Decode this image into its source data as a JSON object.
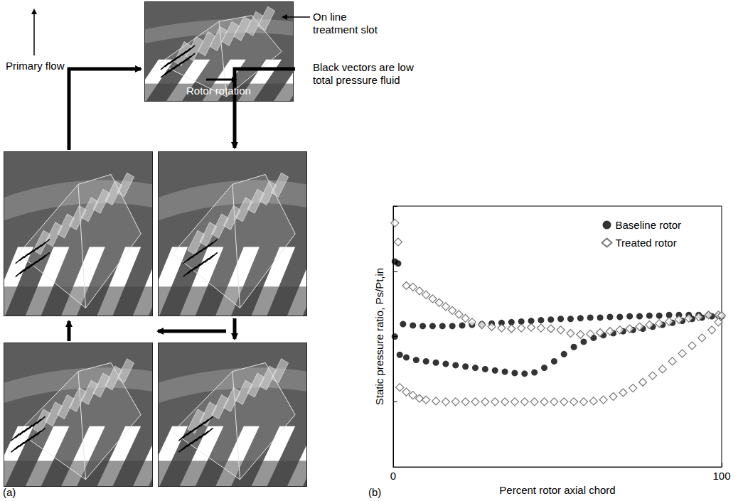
{
  "diagram": {
    "label": "(a)",
    "annotations": {
      "slot": "On line treatment slot",
      "primary_flow": "Primary flow",
      "vectors": "Black vectors are low total pressure fluid",
      "rotation": "Rotor rotation"
    }
  },
  "chart_data": {
    "type": "scatter",
    "annotations": [
      "(b)"
    ],
    "x_label": "Percent rotor axial chord",
    "y_label": "Static pressure ratio, Ps/Pt,in",
    "xlim": [
      0,
      100
    ],
    "xticks": [
      0,
      100
    ],
    "ylim": [
      0,
      4
    ],
    "yticks": [
      0,
      1,
      2,
      3,
      4
    ],
    "tick_labels": "x",
    "grid": false,
    "legend": "upper right",
    "series": [
      {
        "name": "Baseline rotor",
        "color": "#000000",
        "marker": "circle",
        "x": [
          0.5,
          1.5,
          0.5,
          3,
          6,
          9,
          12,
          15,
          18,
          21,
          24,
          27,
          30,
          33,
          36,
          39,
          42,
          45,
          48,
          51,
          54,
          57,
          60,
          63,
          66,
          69,
          72,
          75,
          78,
          81,
          84,
          87,
          90,
          93,
          96,
          99,
          2,
          4,
          7,
          10,
          13,
          16,
          19,
          22,
          25,
          28,
          31,
          34,
          37,
          40,
          43,
          46,
          49,
          52,
          55,
          58,
          61,
          64,
          67,
          70,
          73,
          76,
          79,
          82,
          85,
          88,
          91,
          94,
          97,
          100
        ],
        "values": [
          3.15,
          3.12,
          2.0,
          2.19,
          2.17,
          2.16,
          2.16,
          2.16,
          2.16,
          2.17,
          2.18,
          2.19,
          2.2,
          2.21,
          2.22,
          2.23,
          2.24,
          2.25,
          2.26,
          2.27,
          2.27,
          2.28,
          2.29,
          2.29,
          2.3,
          2.3,
          2.31,
          2.31,
          2.32,
          2.32,
          2.33,
          2.33,
          2.33,
          2.33,
          2.33,
          2.32,
          1.72,
          1.68,
          1.64,
          1.62,
          1.6,
          1.58,
          1.56,
          1.54,
          1.52,
          1.5,
          1.48,
          1.46,
          1.44,
          1.43,
          1.45,
          1.52,
          1.62,
          1.73,
          1.84,
          1.92,
          1.98,
          2.02,
          2.05,
          2.08,
          2.1,
          2.12,
          2.15,
          2.18,
          2.21,
          2.24,
          2.27,
          2.29,
          2.31,
          2.31
        ]
      },
      {
        "name": "Treated rotor",
        "color": "#555555",
        "marker": "diamond_open",
        "x": [
          0.5,
          1.5,
          4,
          6,
          8,
          10,
          12,
          14,
          16,
          18,
          20,
          22,
          24,
          27,
          30,
          33,
          36,
          39,
          42,
          45,
          48,
          51,
          54,
          57,
          60,
          63,
          66,
          69,
          72,
          75,
          78,
          81,
          84,
          87,
          90,
          93,
          96,
          99,
          100,
          2,
          4,
          6,
          8,
          10,
          13,
          16,
          19,
          22,
          25,
          28,
          31,
          34,
          37,
          40,
          43,
          46,
          49,
          52,
          55,
          58,
          61,
          64,
          67,
          70,
          73,
          76,
          79,
          82,
          85,
          88,
          91,
          94,
          97,
          99
        ],
        "values": [
          3.74,
          3.45,
          2.78,
          2.76,
          2.7,
          2.64,
          2.58,
          2.52,
          2.46,
          2.4,
          2.34,
          2.28,
          2.22,
          2.18,
          2.15,
          2.13,
          2.12,
          2.13,
          2.14,
          2.13,
          2.12,
          2.1,
          2.05,
          2.03,
          2.04,
          2.06,
          2.08,
          2.1,
          2.12,
          2.15,
          2.18,
          2.2,
          2.23,
          2.26,
          2.28,
          2.3,
          2.33,
          2.33,
          2.32,
          1.22,
          1.15,
          1.1,
          1.05,
          1.03,
          1.01,
          1.0,
          1.0,
          1.0,
          1.0,
          1.0,
          1.0,
          1.0,
          1.0,
          1.0,
          1.0,
          1.0,
          1.0,
          1.0,
          1.0,
          1.0,
          1.01,
          1.03,
          1.08,
          1.14,
          1.21,
          1.3,
          1.4,
          1.5,
          1.62,
          1.74,
          1.86,
          1.98,
          2.1,
          2.22
        ]
      }
    ]
  }
}
